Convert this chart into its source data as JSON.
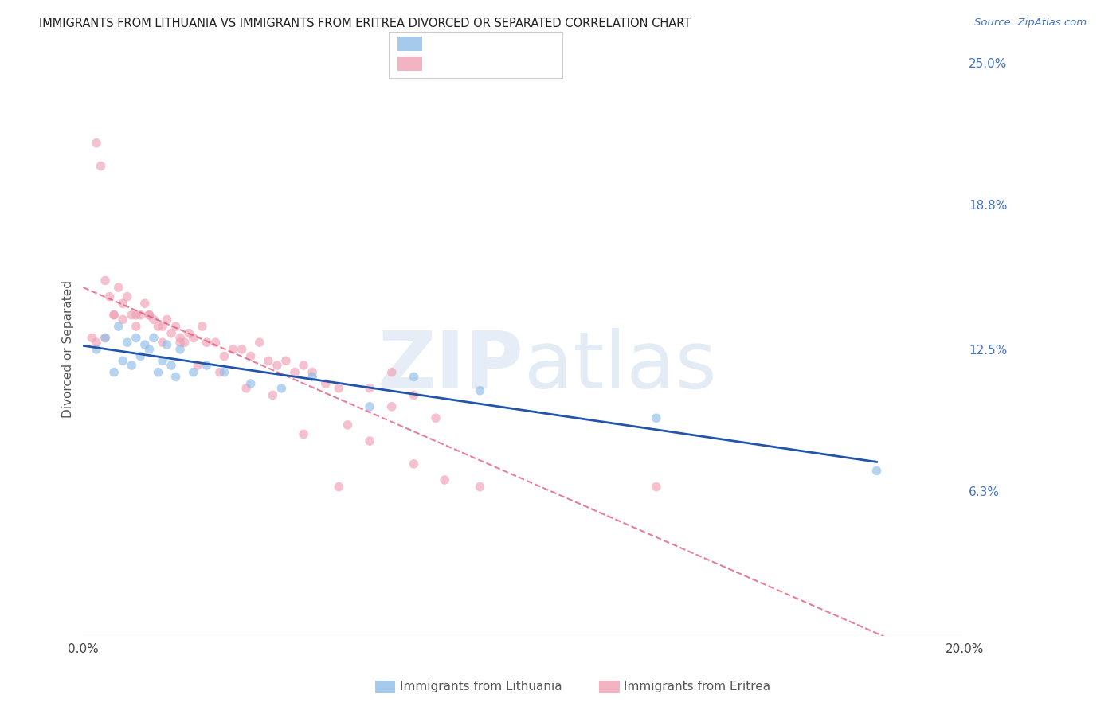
{
  "title": "IMMIGRANTS FROM LITHUANIA VS IMMIGRANTS FROM ERITREA DIVORCED OR SEPARATED CORRELATION CHART",
  "source": "Source: ZipAtlas.com",
  "ylabel": "Divorced or Separated",
  "xlim": [
    0.0,
    0.2
  ],
  "ylim": [
    0.0,
    0.25
  ],
  "xticks": [
    0.0,
    0.05,
    0.1,
    0.15,
    0.2
  ],
  "xtick_labels": [
    "0.0%",
    "",
    "",
    "",
    "20.0%"
  ],
  "ytick_labels_right": [
    "25.0%",
    "18.8%",
    "12.5%",
    "6.3%"
  ],
  "yticks_right": [
    0.25,
    0.188,
    0.125,
    0.063
  ],
  "background_color": "#ffffff",
  "grid_color": "#d8d8d8",
  "color_lithuania": "#90bde8",
  "color_eritrea": "#f0a0b5",
  "color_line_lithuania": "#2255aa",
  "color_line_eritrea": "#dd5577",
  "color_right_labels": "#4472c4",
  "scatter_alpha": 0.65,
  "scatter_size": 70,
  "lithuania_x": [
    0.003,
    0.005,
    0.007,
    0.008,
    0.009,
    0.01,
    0.011,
    0.012,
    0.013,
    0.014,
    0.015,
    0.016,
    0.017,
    0.018,
    0.019,
    0.02,
    0.021,
    0.022,
    0.025,
    0.028,
    0.032,
    0.038,
    0.045,
    0.052,
    0.065,
    0.075,
    0.09,
    0.13,
    0.18
  ],
  "lithuania_y": [
    0.125,
    0.13,
    0.115,
    0.135,
    0.12,
    0.128,
    0.118,
    0.13,
    0.122,
    0.127,
    0.125,
    0.13,
    0.115,
    0.12,
    0.127,
    0.118,
    0.113,
    0.125,
    0.115,
    0.118,
    0.115,
    0.11,
    0.108,
    0.113,
    0.1,
    0.113,
    0.107,
    0.095,
    0.072
  ],
  "eritrea_x": [
    0.002,
    0.003,
    0.004,
    0.005,
    0.006,
    0.007,
    0.008,
    0.009,
    0.01,
    0.011,
    0.012,
    0.013,
    0.014,
    0.015,
    0.016,
    0.017,
    0.018,
    0.019,
    0.02,
    0.021,
    0.022,
    0.023,
    0.024,
    0.025,
    0.027,
    0.028,
    0.03,
    0.032,
    0.034,
    0.036,
    0.038,
    0.04,
    0.042,
    0.044,
    0.046,
    0.048,
    0.05,
    0.052,
    0.055,
    0.058,
    0.06,
    0.065,
    0.07,
    0.075,
    0.08,
    0.003,
    0.005,
    0.007,
    0.009,
    0.012,
    0.015,
    0.018,
    0.022,
    0.026,
    0.031,
    0.037,
    0.043,
    0.05,
    0.058,
    0.065,
    0.075,
    0.082,
    0.09,
    0.13,
    0.07
  ],
  "eritrea_y": [
    0.13,
    0.215,
    0.205,
    0.155,
    0.148,
    0.14,
    0.152,
    0.145,
    0.148,
    0.14,
    0.14,
    0.14,
    0.145,
    0.14,
    0.138,
    0.135,
    0.135,
    0.138,
    0.132,
    0.135,
    0.13,
    0.128,
    0.132,
    0.13,
    0.135,
    0.128,
    0.128,
    0.122,
    0.125,
    0.125,
    0.122,
    0.128,
    0.12,
    0.118,
    0.12,
    0.115,
    0.118,
    0.115,
    0.11,
    0.108,
    0.092,
    0.108,
    0.1,
    0.105,
    0.095,
    0.128,
    0.13,
    0.14,
    0.138,
    0.135,
    0.14,
    0.128,
    0.128,
    0.118,
    0.115,
    0.108,
    0.105,
    0.088,
    0.065,
    0.085,
    0.075,
    0.068,
    0.065,
    0.065,
    0.115
  ]
}
